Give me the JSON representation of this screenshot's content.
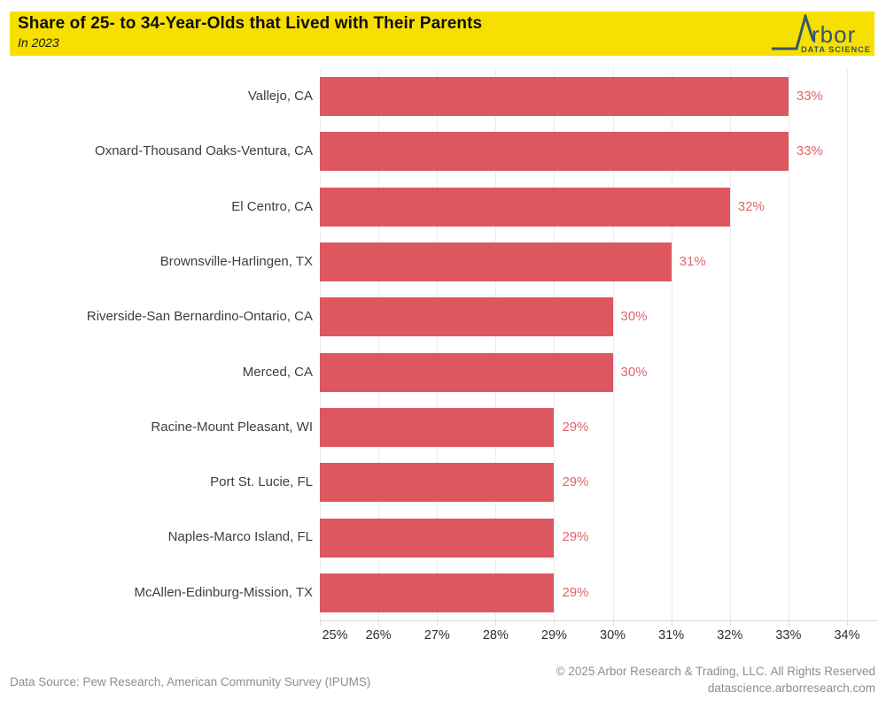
{
  "header": {
    "title": "Share of 25- to 34-Year-Olds that Lived with Their Parents",
    "subtitle": "In 2023",
    "logo": {
      "brand_text": "rbor",
      "tagline": "DATA SCIENCE"
    }
  },
  "chart_data": {
    "type": "bar",
    "orientation": "horizontal",
    "title": "Share of 25- to 34-Year-Olds that Lived with Their Parents",
    "subtitle": "In 2023",
    "categories": [
      "Vallejo, CA",
      "Oxnard-Thousand Oaks-Ventura, CA",
      "El Centro, CA",
      "Brownsville-Harlingen, TX",
      "Riverside-San Bernardino-Ontario, CA",
      "Merced, CA",
      "Racine-Mount Pleasant, WI",
      "Port St. Lucie, FL",
      "Naples-Marco Island, FL",
      "McAllen-Edinburg-Mission, TX"
    ],
    "values": [
      33,
      33,
      32,
      31,
      30,
      30,
      29,
      29,
      29,
      29
    ],
    "value_labels": [
      "33%",
      "33%",
      "32%",
      "31%",
      "30%",
      "30%",
      "29%",
      "29%",
      "29%",
      "29%"
    ],
    "xlim": [
      25,
      34
    ],
    "x_tick_labels": [
      "25%",
      "26%",
      "27%",
      "28%",
      "29%",
      "30%",
      "31%",
      "32%",
      "33%",
      "34%"
    ],
    "grid": true,
    "legend": false
  },
  "footer": {
    "source": "Data Source: Pew Research, American Community Survey (IPUMS)",
    "copyright": "© 2025 Arbor Research & Trading, LLC. All Rights Reserved",
    "website": "datascience.arborresearch.com"
  },
  "colors": {
    "header_bg": "#F7E000",
    "bar": "#DC5760",
    "value_label": "#E0656D",
    "logo": "#35566B",
    "gridline": "#EBEBEB",
    "axis": "#D8D8D8",
    "label_text": "#3E3E3E",
    "tick_text": "#2F2F2F",
    "footer_text": "#8E8E8E",
    "title_text": "#111111"
  }
}
